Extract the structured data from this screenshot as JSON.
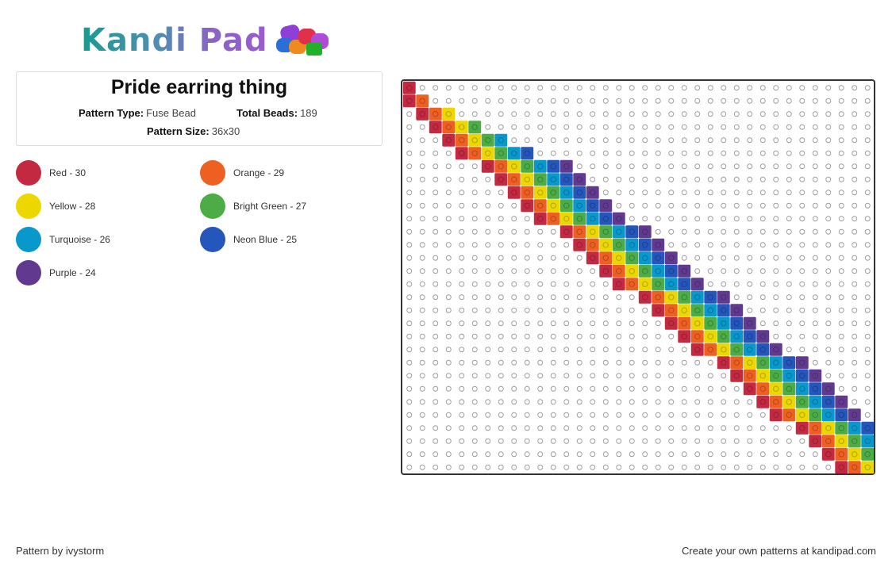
{
  "brand": {
    "name": "Kandi Pad"
  },
  "pattern": {
    "title": "Pride earring thing",
    "type_label": "Pattern Type:",
    "type_value": "Fuse Bead",
    "total_label": "Total Beads:",
    "total_value": "189",
    "size_label": "Pattern Size:",
    "size_value": "36x30"
  },
  "legend": [
    {
      "label": "Red - 30",
      "color": "#c32a42"
    },
    {
      "label": "Orange - 29",
      "color": "#ee6022"
    },
    {
      "label": "Yellow - 28",
      "color": "#ecd800"
    },
    {
      "label": "Bright Green - 27",
      "color": "#4cac46"
    },
    {
      "label": "Turquoise - 26",
      "color": "#0898cc"
    },
    {
      "label": "Neon Blue - 25",
      "color": "#2556bb"
    },
    {
      "label": "Purple - 24",
      "color": "#613a8f"
    }
  ],
  "grid": {
    "columns": 36,
    "rows": 30,
    "stripe_colors": [
      "#c32a42",
      "#ee6022",
      "#ecd800",
      "#4cac46",
      "#0898cc",
      "#2556bb",
      "#613a8f"
    ]
  },
  "footer": {
    "credit": "Pattern by ivystorm",
    "cta": "Create your own patterns at kandipad.com"
  }
}
